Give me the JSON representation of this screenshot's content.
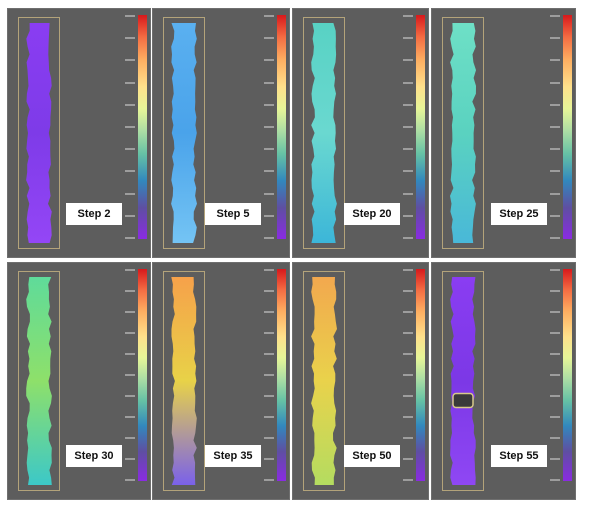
{
  "panels": [
    {
      "label": "Step 2",
      "colors": [
        "#8a3df2",
        "#7e3be8",
        "#9446f6"
      ]
    },
    {
      "label": "Step 5",
      "colors": [
        "#5ab0f0",
        "#4aa3ea",
        "#74c4f4"
      ]
    },
    {
      "label": "Step 20",
      "colors": [
        "#58d2c4",
        "#6ad8d0",
        "#3cb6d8"
      ]
    },
    {
      "label": "Step 25",
      "colors": [
        "#6ee0c6",
        "#5ad2c0",
        "#49b8d8"
      ]
    },
    {
      "label": "Step 30",
      "colors": [
        "#5fdb9a",
        "#8ee06a",
        "#3cc8c8"
      ]
    },
    {
      "label": "Step 35",
      "colors": [
        "#f6a14a",
        "#e8d248",
        "#7a61ea"
      ]
    },
    {
      "label": "Step 50",
      "colors": [
        "#f2a84e",
        "#e9d24b",
        "#b4dc60"
      ]
    },
    {
      "label": "Step 55",
      "colors": [
        "#8a3df2",
        "#7c38e6",
        "#8f47f4"
      ]
    }
  ]
}
